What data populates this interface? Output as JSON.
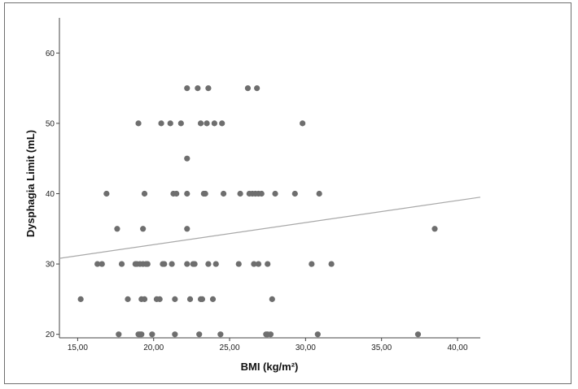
{
  "chart_data": {
    "type": "scatter",
    "xlabel": "BMI (kg/m²)",
    "ylabel": "Dysphagia Limit (mL)",
    "xlim": [
      13.8,
      41.5
    ],
    "ylim": [
      19.5,
      65
    ],
    "x_ticks": [
      15,
      20,
      25,
      30,
      35,
      40
    ],
    "x_tick_labels": [
      "15,00",
      "20,00",
      "25,00",
      "30,00",
      "35,00",
      "40,00"
    ],
    "y_ticks": [
      20,
      30,
      40,
      50,
      60
    ],
    "y_tick_labels": [
      "20",
      "30",
      "40",
      "50",
      "60"
    ],
    "grid": false,
    "legend": "none",
    "point_color": "#6e6e6e",
    "line_color": "#a8a8a8",
    "fit_line": {
      "x": [
        13.8,
        41.5
      ],
      "y": [
        30.8,
        39.5
      ]
    },
    "points": [
      [
        15.2,
        25
      ],
      [
        16.3,
        30
      ],
      [
        16.6,
        30
      ],
      [
        16.9,
        40
      ],
      [
        17.6,
        35
      ],
      [
        17.7,
        20
      ],
      [
        17.9,
        30
      ],
      [
        18.3,
        25
      ],
      [
        18.8,
        30
      ],
      [
        18.9,
        30
      ],
      [
        19.0,
        50
      ],
      [
        19.0,
        20
      ],
      [
        19.1,
        20
      ],
      [
        19.1,
        30
      ],
      [
        19.2,
        25
      ],
      [
        19.2,
        20
      ],
      [
        19.3,
        35
      ],
      [
        19.3,
        30
      ],
      [
        19.4,
        40
      ],
      [
        19.4,
        25
      ],
      [
        19.5,
        30
      ],
      [
        19.6,
        30
      ],
      [
        19.9,
        20
      ],
      [
        20.2,
        25
      ],
      [
        20.4,
        25
      ],
      [
        20.5,
        50
      ],
      [
        20.6,
        30
      ],
      [
        20.7,
        30
      ],
      [
        21.1,
        50
      ],
      [
        21.2,
        30
      ],
      [
        21.3,
        40
      ],
      [
        21.4,
        25
      ],
      [
        21.4,
        20
      ],
      [
        21.5,
        40
      ],
      [
        21.8,
        50
      ],
      [
        22.2,
        30
      ],
      [
        22.2,
        55
      ],
      [
        22.2,
        45
      ],
      [
        22.2,
        40
      ],
      [
        22.2,
        35
      ],
      [
        22.4,
        25
      ],
      [
        22.6,
        30
      ],
      [
        22.7,
        30
      ],
      [
        22.9,
        55
      ],
      [
        23.0,
        20
      ],
      [
        23.1,
        50
      ],
      [
        23.1,
        25
      ],
      [
        23.2,
        25
      ],
      [
        23.3,
        40
      ],
      [
        23.4,
        40
      ],
      [
        23.5,
        50
      ],
      [
        23.6,
        55
      ],
      [
        23.6,
        30
      ],
      [
        23.9,
        25
      ],
      [
        24.0,
        50
      ],
      [
        24.1,
        30
      ],
      [
        24.4,
        20
      ],
      [
        24.5,
        50
      ],
      [
        24.6,
        40
      ],
      [
        25.6,
        30
      ],
      [
        25.7,
        40
      ],
      [
        26.2,
        55
      ],
      [
        26.3,
        40
      ],
      [
        26.5,
        40
      ],
      [
        26.6,
        30
      ],
      [
        26.7,
        40
      ],
      [
        26.8,
        55
      ],
      [
        26.9,
        30
      ],
      [
        26.9,
        40
      ],
      [
        27.1,
        40
      ],
      [
        27.4,
        20
      ],
      [
        27.5,
        20
      ],
      [
        27.5,
        30
      ],
      [
        27.7,
        20
      ],
      [
        27.8,
        25
      ],
      [
        28.0,
        40
      ],
      [
        29.3,
        40
      ],
      [
        29.8,
        50
      ],
      [
        30.4,
        30
      ],
      [
        30.8,
        20
      ],
      [
        30.9,
        40
      ],
      [
        31.7,
        30
      ],
      [
        37.4,
        20
      ],
      [
        38.5,
        35
      ]
    ]
  }
}
